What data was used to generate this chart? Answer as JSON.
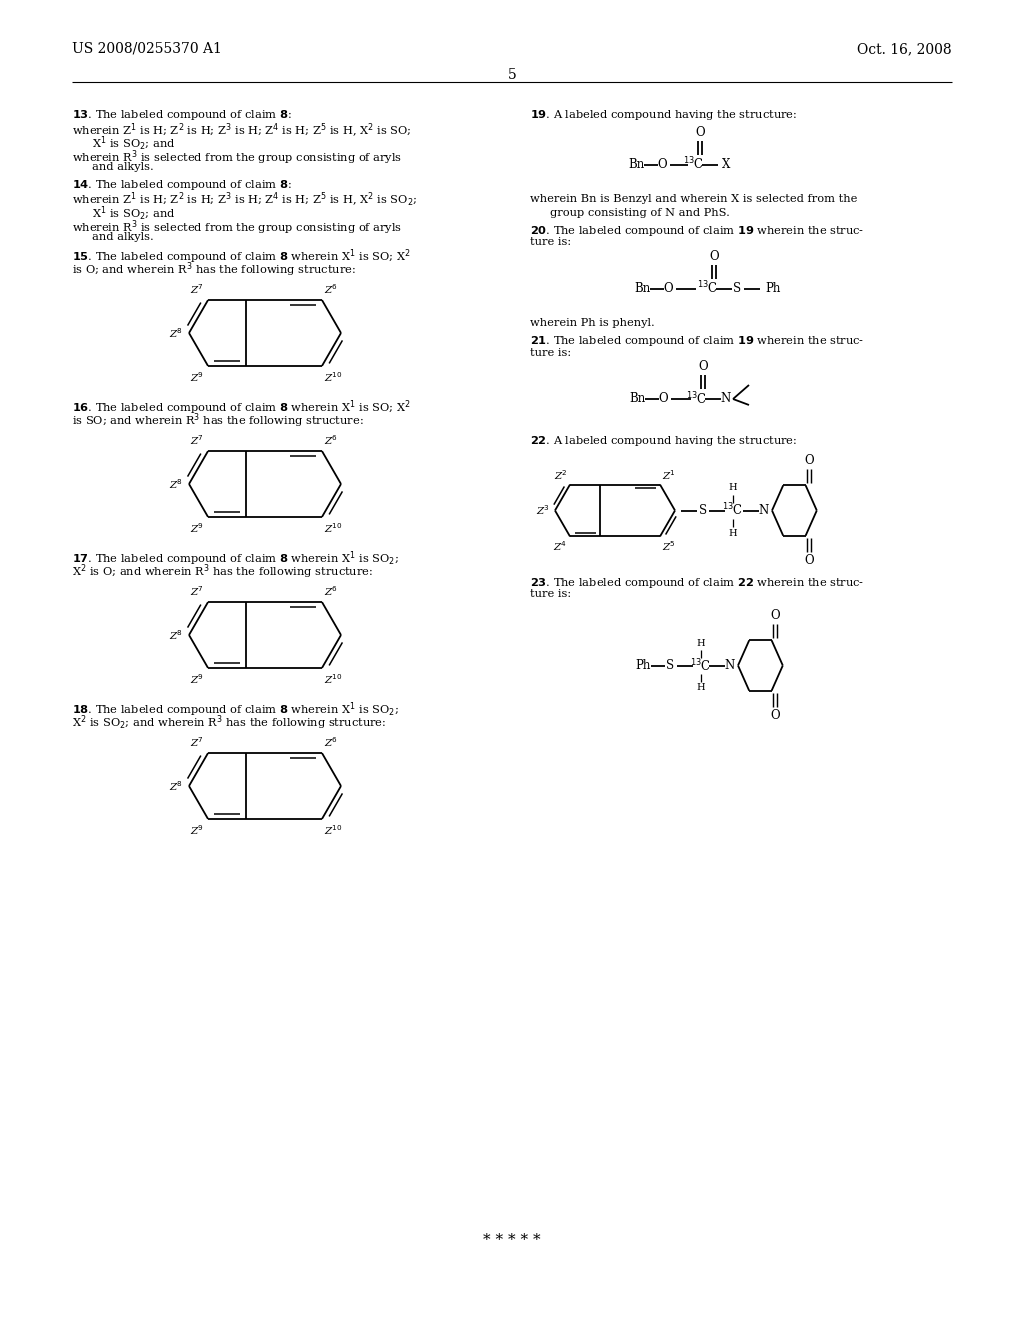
{
  "bg_color": "#ffffff",
  "page_number": "5",
  "header_left": "US 2008/0255370 A1",
  "header_right": "Oct. 16, 2008",
  "font_color": "#1a1a1a",
  "figsize": [
    10.24,
    13.2
  ],
  "dpi": 100
}
